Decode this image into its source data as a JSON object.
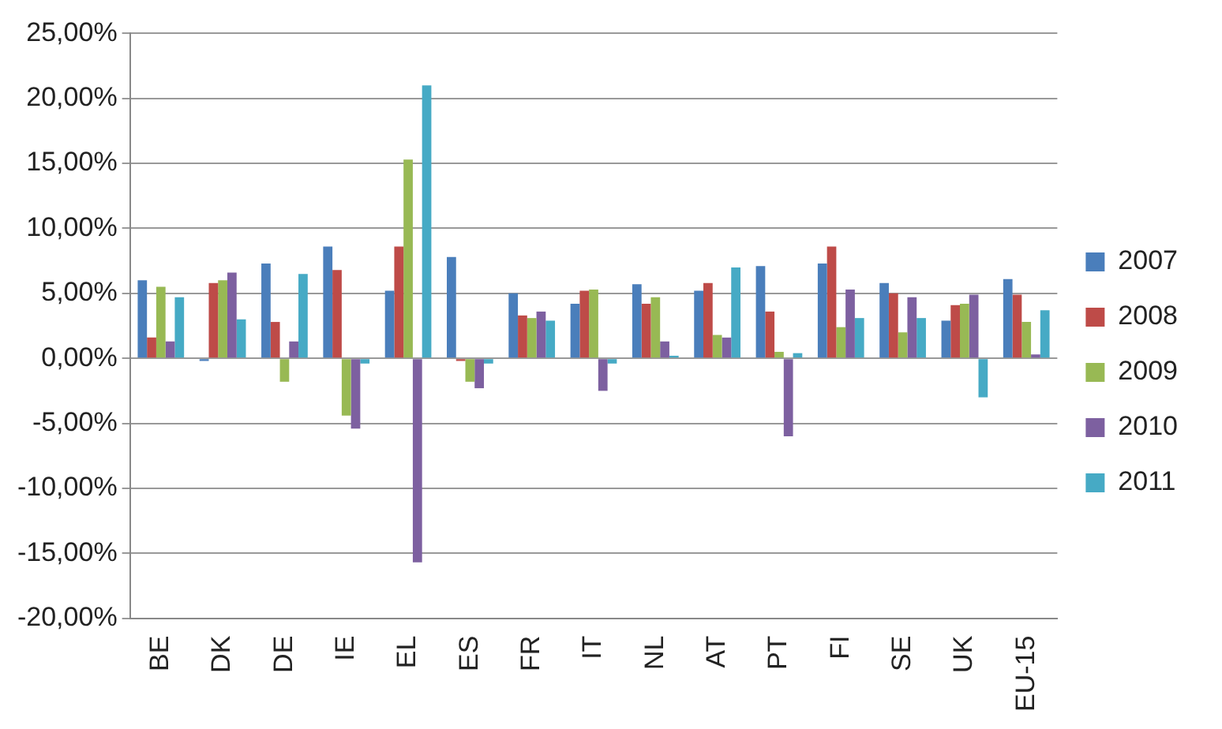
{
  "chart_data": {
    "type": "bar",
    "categories": [
      "BE",
      "DK",
      "DE",
      "IE",
      "EL",
      "ES",
      "FR",
      "IT",
      "NL",
      "AT",
      "PT",
      "FI",
      "SE",
      "UK",
      "EU-15"
    ],
    "series": [
      {
        "name": "2007",
        "color": "#4a7ebb",
        "values": [
          6.0,
          -0.2,
          7.3,
          8.6,
          5.2,
          7.8,
          5.0,
          4.2,
          5.7,
          5.2,
          7.1,
          7.3,
          5.8,
          2.9,
          6.1
        ]
      },
      {
        "name": "2008",
        "color": "#be4b48",
        "values": [
          1.6,
          5.8,
          2.8,
          6.8,
          8.6,
          -0.2,
          3.3,
          5.2,
          4.2,
          5.8,
          3.6,
          8.6,
          5.0,
          4.1,
          4.9
        ]
      },
      {
        "name": "2009",
        "color": "#98b954",
        "values": [
          5.5,
          6.0,
          -1.8,
          -4.4,
          15.3,
          -1.8,
          3.1,
          5.3,
          4.7,
          1.8,
          0.5,
          2.4,
          2.0,
          4.2,
          2.8
        ]
      },
      {
        "name": "2010",
        "color": "#7d60a0",
        "values": [
          1.3,
          6.6,
          1.3,
          -5.4,
          -15.7,
          -2.3,
          3.6,
          -2.5,
          1.3,
          1.6,
          -6.0,
          5.3,
          4.7,
          4.9,
          0.3
        ]
      },
      {
        "name": "2011",
        "color": "#46aac5",
        "values": [
          4.7,
          3.0,
          6.5,
          -0.4,
          21.0,
          -0.4,
          2.9,
          -0.4,
          0.2,
          7.0,
          0.4,
          3.1,
          3.1,
          -3.0,
          3.7
        ]
      }
    ],
    "ylim": [
      -20,
      25
    ],
    "yticks": [
      {
        "value": -20,
        "label": "-20,00%"
      },
      {
        "value": -15,
        "label": "-15,00%"
      },
      {
        "value": -10,
        "label": "-10,00%"
      },
      {
        "value": -5,
        "label": "-5,00%"
      },
      {
        "value": 0,
        "label": "0,00%"
      },
      {
        "value": 5,
        "label": "5,00%"
      },
      {
        "value": 10,
        "label": "10,00%"
      },
      {
        "value": 15,
        "label": "15,00%"
      },
      {
        "value": 20,
        "label": "20,00%"
      },
      {
        "value": 25,
        "label": "25,00%"
      }
    ],
    "grid": "y",
    "legend": "right"
  }
}
